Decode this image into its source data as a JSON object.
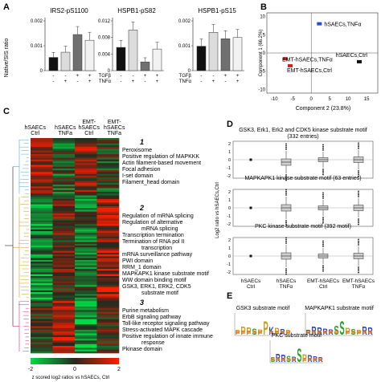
{
  "panels": {
    "A": {
      "letter": "A",
      "ylabel": "Native/SIS ratio",
      "subplots": [
        {
          "title": "IRS2-pS1100",
          "ymax_label": "0.002",
          "ymid_label": "0.001",
          "yzero_label": "0",
          "values": [
            0.00053,
            0.00074,
            0.00145,
            0.00122
          ]
        },
        {
          "title": "HSPB1-pS82",
          "ymax_label": "0.012",
          "ymid_label": "0.008",
          "ylow_label": "0.004",
          "yzero_label": "0",
          "values": [
            0.0056,
            0.0098,
            0.0021,
            0.0052
          ]
        },
        {
          "title": "HSPB1-pS15",
          "ymax_label": "0.002",
          "ymid_label": "0.001",
          "yzero_label": "0",
          "values": [
            0.00098,
            0.00154,
            0.00128,
            0.00133
          ]
        }
      ],
      "bar_colors": [
        "#111111",
        "#dcdcdc",
        "#707070",
        "#f2f2f2"
      ],
      "row_labels": [
        "TGFβ",
        "TNFα"
      ],
      "tgf_signs": [
        "-",
        "-",
        "+",
        "+"
      ],
      "tnf_signs": [
        "-",
        "+",
        "-",
        "+"
      ]
    },
    "B": {
      "letter": "B",
      "xlabel": "Component 2 (23.8%)",
      "ylabel": "Component 1 (66.2%)",
      "x_ticks": [
        "-10",
        "-5",
        "0",
        "5",
        "10",
        "15"
      ],
      "y_ticks": [
        "10",
        "5",
        "0",
        "-5",
        "-10"
      ],
      "points": [
        {
          "label": "hSAECs,TNFα",
          "x": 2.2,
          "y": 8.0,
          "color": "#1f4fd1"
        },
        {
          "label": "EMT-hSAECs,TNFα",
          "x": -7.0,
          "y": -1.6,
          "color": "#cc2222"
        },
        {
          "label": "EMT-hSAECs,Ctrl",
          "x": -5.7,
          "y": -3.5,
          "color": "#cc2222"
        },
        {
          "label": "hSAECs,Ctrl",
          "x": 13.0,
          "y": -2.4,
          "color": "#111111"
        }
      ]
    },
    "C": {
      "letter": "C",
      "columns": [
        "hSAECs\nCtrl",
        "hSAECs\nTNFa",
        "EMT-\nhSAECs\nCtrl",
        "EMT-\nhSAECs\nTNFa"
      ],
      "colorbar_ticks": [
        "-2",
        "0",
        "2"
      ],
      "colorbar_label": "z scored log2 ratios vs hSAECs, Ctrl",
      "clusters": [
        {
          "number": "1",
          "terms": [
            "Peroxisome",
            "Positive regulation of MAPKKK",
            "Actin filament-based movement",
            "Focal adhesion",
            "I-set domain",
            "Filament_head domain"
          ]
        },
        {
          "number": "2",
          "terms": [
            "Regulation of mRNA splicing",
            "Regulation of alternative",
            "mRNA splicing",
            "Transcription termination",
            "Termination of RNA pol II",
            "transcription",
            "mRNA surveillance pathway",
            "PWI domain",
            "RRM_1 domain",
            "MAPKAPK1 kinase substrate motif",
            "WW domain binding motif",
            "GSK3, ERK1, ERK2, CDK5",
            "substrate motif"
          ]
        },
        {
          "number": "3",
          "terms": [
            "Purine metabolism",
            "ErbB signaling pathway",
            "Toll-like receptor signaling pathway",
            "Stress-activated MAPK cascade",
            "Positive regulation of innate immune",
            "response",
            "Pkinase domain"
          ]
        }
      ]
    },
    "D": {
      "letter": "D",
      "ylabel": "Log2 ratio vs hSAECs,Ctrl",
      "y_ticks": [
        "2",
        "1",
        "0",
        "-1",
        "-2"
      ],
      "x_labels": [
        "hSAECs\nCtrl",
        "hSAECs\nTNFα",
        "EMT-hSAECs\nCtrl",
        "EMT-hSAECs\nTNFα"
      ],
      "subplots": [
        {
          "title": "GSK3, Erk1, Erk2 and CDK5 kinase substrate motif",
          "subtitle": "(332 entries)"
        },
        {
          "title": "MAPKAPK1 kinase substrate motif (63 entries)",
          "subtitle": ""
        },
        {
          "title": "PKC kinase substrate motif (392 motif)",
          "subtitle": ""
        }
      ]
    },
    "E": {
      "letter": "E",
      "logos": [
        {
          "title": "GSK3 substrate motif",
          "sequence": "PPPSPPKPRP",
          "center": "S"
        },
        {
          "title": "MAPKAPK1 substrate motif",
          "sequence": "RRRRRSSPSPRR",
          "center": "S"
        },
        {
          "title": "PKC substrate motif",
          "sequence": "SRRSRSPRRR",
          "center": "S"
        }
      ]
    }
  }
}
